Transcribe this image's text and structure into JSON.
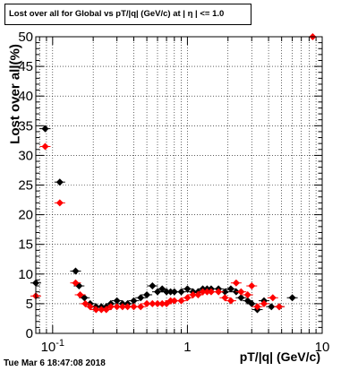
{
  "title": "Lost over all for Global vs pT/|q| (GeV/c) at | η | <= 1.0",
  "timestamp": "Tue Mar  6 18:47:08 2018",
  "chart_data": {
    "type": "scatter",
    "title": "Lost over all for Global vs pT/|q| (GeV/c) at | η | <= 1.0",
    "xlabel": "pT/|q| (GeV/c)",
    "ylabel": "Lost over all(%)",
    "x_scale": "log",
    "xlim": [
      0.075,
      10
    ],
    "ylim": [
      0,
      50
    ],
    "x_tick_labels": [
      "10^-1",
      "1",
      "10"
    ],
    "x_tick_values": [
      0.1,
      1,
      10
    ],
    "y_tick_values": [
      0,
      5,
      10,
      15,
      20,
      25,
      30,
      35,
      40,
      45,
      50
    ],
    "grid": true,
    "series": [
      {
        "color": "#000000",
        "points": [
          {
            "x": 0.075,
            "y": 8.5
          },
          {
            "x": 0.088,
            "y": 34.5
          },
          {
            "x": 0.113,
            "y": 25.5
          },
          {
            "x": 0.148,
            "y": 10.5
          },
          {
            "x": 0.157,
            "y": 8.0
          },
          {
            "x": 0.172,
            "y": 6.0
          },
          {
            "x": 0.19,
            "y": 5.0
          },
          {
            "x": 0.21,
            "y": 4.5
          },
          {
            "x": 0.23,
            "y": 4.5
          },
          {
            "x": 0.25,
            "y": 4.5
          },
          {
            "x": 0.27,
            "y": 5.0
          },
          {
            "x": 0.3,
            "y": 5.5
          },
          {
            "x": 0.33,
            "y": 5.0
          },
          {
            "x": 0.36,
            "y": 5.0
          },
          {
            "x": 0.4,
            "y": 5.5
          },
          {
            "x": 0.45,
            "y": 6.0
          },
          {
            "x": 0.5,
            "y": 6.5
          },
          {
            "x": 0.55,
            "y": 8.0
          },
          {
            "x": 0.6,
            "y": 7.0
          },
          {
            "x": 0.65,
            "y": 7.5
          },
          {
            "x": 0.7,
            "y": 7.0
          },
          {
            "x": 0.75,
            "y": 7.0
          },
          {
            "x": 0.8,
            "y": 7.0
          },
          {
            "x": 0.9,
            "y": 7.0
          },
          {
            "x": 1.0,
            "y": 7.5
          },
          {
            "x": 1.1,
            "y": 7.0
          },
          {
            "x": 1.2,
            "y": 7.0
          },
          {
            "x": 1.3,
            "y": 7.5
          },
          {
            "x": 1.4,
            "y": 7.5
          },
          {
            "x": 1.5,
            "y": 7.5
          },
          {
            "x": 1.7,
            "y": 7.5
          },
          {
            "x": 1.9,
            "y": 7.0
          },
          {
            "x": 2.1,
            "y": 7.5
          },
          {
            "x": 2.3,
            "y": 7.0
          },
          {
            "x": 2.5,
            "y": 6.0
          },
          {
            "x": 2.8,
            "y": 5.5
          },
          {
            "x": 3.0,
            "y": 5.0
          },
          {
            "x": 3.3,
            "y": 4.0
          },
          {
            "x": 3.7,
            "y": 5.5
          },
          {
            "x": 4.2,
            "y": 4.5
          },
          {
            "x": 4.8,
            "y": 4.5
          },
          {
            "x": 6.0,
            "y": 6.0
          }
        ]
      },
      {
        "color": "#ff0000",
        "points": [
          {
            "x": 0.075,
            "y": 6.3
          },
          {
            "x": 0.088,
            "y": 31.5
          },
          {
            "x": 0.113,
            "y": 22.0
          },
          {
            "x": 0.148,
            "y": 8.5
          },
          {
            "x": 0.16,
            "y": 6.5
          },
          {
            "x": 0.175,
            "y": 5.0
          },
          {
            "x": 0.19,
            "y": 4.5
          },
          {
            "x": 0.21,
            "y": 4.0
          },
          {
            "x": 0.23,
            "y": 4.0
          },
          {
            "x": 0.25,
            "y": 4.0
          },
          {
            "x": 0.27,
            "y": 4.5
          },
          {
            "x": 0.3,
            "y": 4.5
          },
          {
            "x": 0.33,
            "y": 4.5
          },
          {
            "x": 0.36,
            "y": 4.5
          },
          {
            "x": 0.4,
            "y": 4.5
          },
          {
            "x": 0.45,
            "y": 4.5
          },
          {
            "x": 0.5,
            "y": 5.0
          },
          {
            "x": 0.55,
            "y": 5.0
          },
          {
            "x": 0.6,
            "y": 5.0
          },
          {
            "x": 0.65,
            "y": 5.0
          },
          {
            "x": 0.7,
            "y": 5.0
          },
          {
            "x": 0.75,
            "y": 5.5
          },
          {
            "x": 0.8,
            "y": 5.5
          },
          {
            "x": 0.9,
            "y": 5.5
          },
          {
            "x": 1.0,
            "y": 6.0
          },
          {
            "x": 1.1,
            "y": 6.5
          },
          {
            "x": 1.2,
            "y": 6.5
          },
          {
            "x": 1.3,
            "y": 7.0
          },
          {
            "x": 1.4,
            "y": 7.0
          },
          {
            "x": 1.5,
            "y": 7.0
          },
          {
            "x": 1.7,
            "y": 7.0
          },
          {
            "x": 1.9,
            "y": 6.0
          },
          {
            "x": 2.1,
            "y": 5.5
          },
          {
            "x": 2.3,
            "y": 8.5
          },
          {
            "x": 2.5,
            "y": 7.0
          },
          {
            "x": 2.8,
            "y": 6.5
          },
          {
            "x": 3.0,
            "y": 8.0
          },
          {
            "x": 3.3,
            "y": 4.5
          },
          {
            "x": 3.7,
            "y": 5.0
          },
          {
            "x": 4.3,
            "y": 6.0
          },
          {
            "x": 4.8,
            "y": 4.5
          },
          {
            "x": 8.5,
            "y": 50.0
          }
        ]
      }
    ]
  }
}
